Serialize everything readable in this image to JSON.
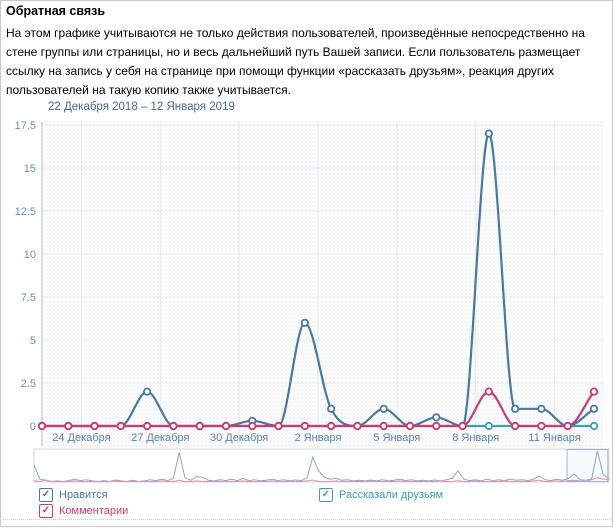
{
  "page": {
    "title": "Обратная связь",
    "description": "На этом графике учитываются не только действия пользователей, произведённые непосредственно на стене группы или страницы, но и весь дальнейший путь Вашей записи. Если пользователь размещает ссылку на запись у себя на странице при помощи функции «рассказать друзьям», реакция других пользователей на такую копию также учитывается."
  },
  "chart_data": {
    "type": "line",
    "title": "22 Декабря 2018 – 12 Января 2019",
    "categories": [
      "22 Декабря",
      "23 Декабря",
      "24 Декабря",
      "25 Декабря",
      "26 Декабря",
      "27 Декабря",
      "28 Декабря",
      "29 Декабря",
      "30 Декабря",
      "31 Декабря",
      "1 Января",
      "2 Января",
      "3 Января",
      "4 Января",
      "5 Января",
      "6 Января",
      "7 Января",
      "8 Января",
      "9 Января",
      "10 Января",
      "11 Января",
      "12 Января"
    ],
    "series": [
      {
        "name": "Нравится",
        "color": "#4678a8",
        "values": [
          0,
          0,
          0,
          0,
          2,
          0,
          0,
          0,
          0.3,
          0,
          6,
          1,
          0,
          1,
          0,
          0.5,
          0,
          17,
          1,
          1,
          0,
          1
        ]
      },
      {
        "name": "Комментарии",
        "color": "#cf3a6d",
        "values": [
          0,
          0,
          0,
          0,
          0,
          0,
          0,
          0,
          0,
          0,
          0,
          0,
          0,
          0,
          0,
          0,
          0,
          2,
          0,
          0,
          0,
          2
        ]
      },
      {
        "name": "Рассказали друзьям",
        "color": "#38a0b2",
        "values": [
          0,
          0,
          0,
          0,
          0,
          0,
          0,
          0,
          0,
          0,
          0,
          0,
          0,
          0,
          0,
          0,
          0,
          0,
          0,
          0,
          0,
          0
        ]
      }
    ],
    "ylim": [
      0,
      17.5
    ],
    "yticks": [
      0,
      2.5,
      5,
      7.5,
      10,
      12.5,
      15,
      17.5
    ],
    "xtick_labels": [
      "24 Декабря",
      "27 Декабря",
      "30 Декабря",
      "2 Января",
      "5 Января",
      "8 Января",
      "11 Января"
    ],
    "grid": true,
    "legend_position": "bottom"
  },
  "navigator": {
    "selection": [
      0.927,
      0.998
    ],
    "likes": [
      55,
      8,
      4,
      0,
      2,
      0,
      3,
      8,
      3,
      6,
      2,
      0,
      3,
      0,
      5,
      2,
      0,
      4,
      0,
      2,
      6,
      3,
      8,
      3,
      10,
      95,
      12,
      4,
      16,
      14,
      4,
      2,
      6,
      3,
      8,
      3,
      10,
      3,
      6,
      2,
      4,
      8,
      3,
      6,
      2,
      5,
      3,
      12,
      80,
      35,
      14,
      8,
      10,
      4,
      6,
      2,
      4,
      2,
      5,
      2,
      6,
      2,
      4,
      8,
      3,
      6,
      2,
      4,
      2,
      5,
      2,
      6,
      10,
      35,
      8,
      3,
      6,
      2,
      8,
      3,
      6,
      3,
      8,
      4,
      6,
      3,
      8,
      18,
      6,
      3,
      8,
      4,
      10,
      25,
      6,
      4,
      8,
      100,
      22,
      10
    ],
    "comments": [
      3,
      0,
      5,
      0,
      0,
      0,
      0,
      2,
      0,
      0,
      0,
      0,
      0,
      0,
      2,
      0,
      0,
      0,
      0,
      0,
      0,
      0,
      2,
      0,
      0,
      4,
      0,
      0,
      2,
      0,
      0,
      0,
      0,
      0,
      0,
      0,
      2,
      0,
      0,
      0,
      0,
      2,
      0,
      0,
      0,
      0,
      0,
      2,
      5,
      0,
      0,
      0,
      2,
      0,
      0,
      0,
      0,
      0,
      2,
      0,
      0,
      0,
      0,
      2,
      0,
      0,
      0,
      0,
      0,
      0,
      2,
      0,
      0,
      3,
      0,
      0,
      2,
      0,
      0,
      0,
      0,
      2,
      0,
      0,
      0,
      0,
      2,
      4,
      0,
      0,
      2,
      0,
      3,
      4,
      2,
      0,
      6,
      12,
      8,
      6
    ]
  },
  "legend": {
    "items": [
      {
        "label": "Нравится",
        "checked": true
      },
      {
        "label": "Рассказали друзьям",
        "checked": true
      },
      {
        "label": "Комментарии",
        "checked": true
      }
    ]
  },
  "checkmark": "✓"
}
